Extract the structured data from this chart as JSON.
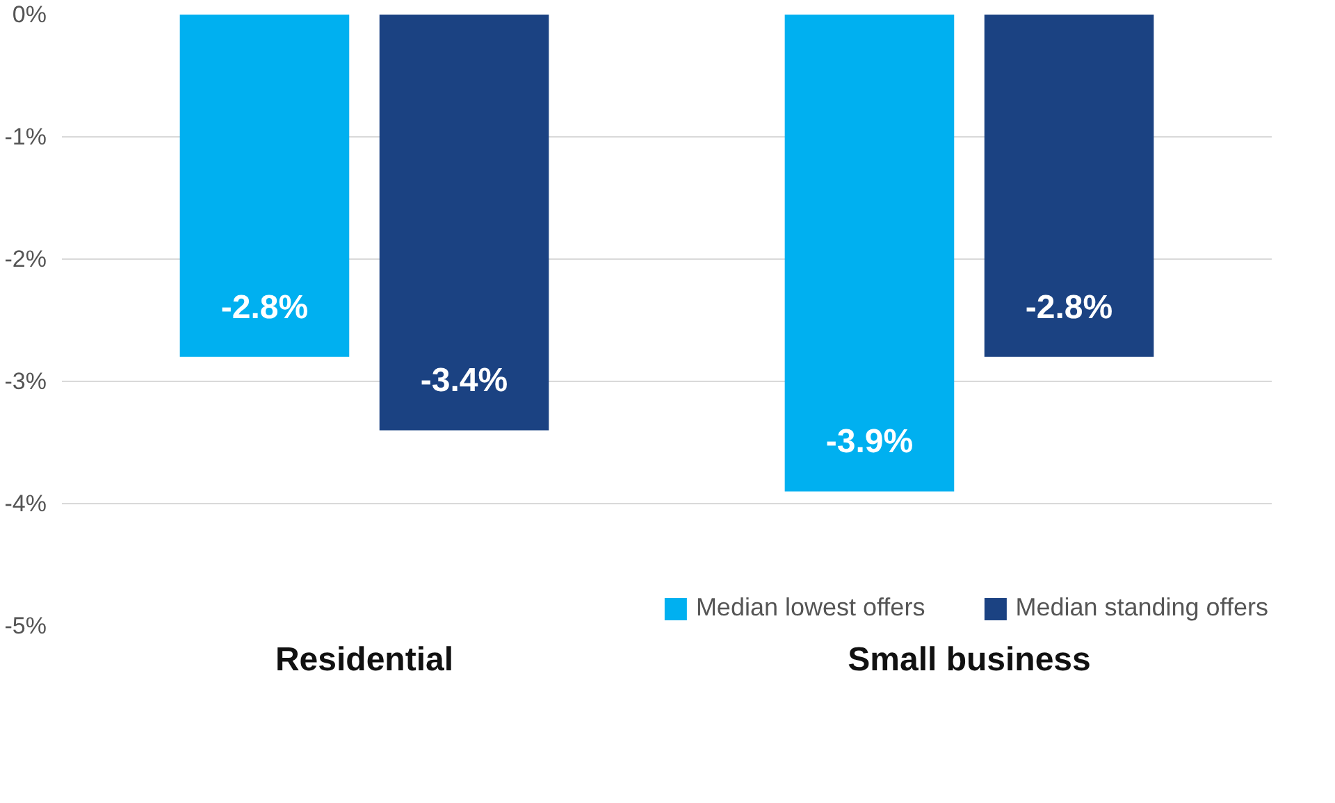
{
  "chart_data": {
    "type": "bar",
    "categories": [
      "Residential",
      "Small business"
    ],
    "series": [
      {
        "name": "Median lowest offers",
        "color": "#00b0f0",
        "values": [
          -2.8,
          -3.9
        ],
        "value_labels": [
          "-2.8%",
          "-3.9%"
        ]
      },
      {
        "name": "Median standing offers",
        "color": "#1b4282",
        "values": [
          -3.4,
          -2.8
        ],
        "value_labels": [
          "-3.4%",
          "-2.8%"
        ]
      }
    ],
    "ylim": [
      -5,
      0
    ],
    "yticks": [
      {
        "value": 0,
        "label": "0%"
      },
      {
        "value": -1,
        "label": "-1%"
      },
      {
        "value": -2,
        "label": "-2%"
      },
      {
        "value": -3,
        "label": "-3%"
      },
      {
        "value": -4,
        "label": "-4%"
      },
      {
        "value": -5,
        "label": "-5%"
      }
    ],
    "grid": "y",
    "legend": "bottom right"
  }
}
